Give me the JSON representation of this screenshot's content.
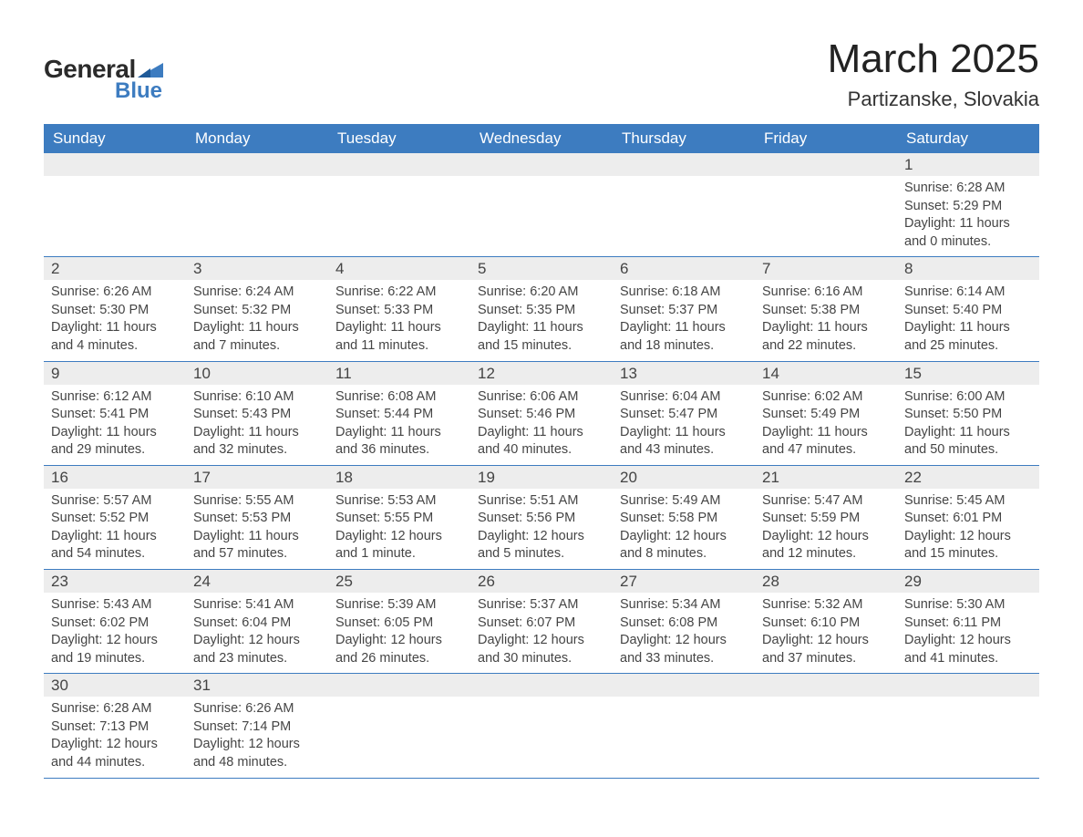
{
  "logo": {
    "text_main": "General",
    "text_sub": "Blue",
    "accent_color": "#3d7cc0",
    "main_color": "#2b2b2b"
  },
  "title": "March 2025",
  "location": "Partizanske, Slovakia",
  "colors": {
    "header_bg": "#3d7cc0",
    "header_text": "#ffffff",
    "daynum_bg": "#ededed",
    "row_border": "#3d7cc0",
    "body_text": "#454545",
    "background": "#ffffff"
  },
  "typography": {
    "title_fontsize": 44,
    "location_fontsize": 22,
    "weekday_fontsize": 17,
    "daynum_fontsize": 17,
    "body_fontsize": 14.5
  },
  "weekdays": [
    "Sunday",
    "Monday",
    "Tuesday",
    "Wednesday",
    "Thursday",
    "Friday",
    "Saturday"
  ],
  "weeks": [
    [
      null,
      null,
      null,
      null,
      null,
      null,
      {
        "day": "1",
        "sunrise": "6:28 AM",
        "sunset": "5:29 PM",
        "daylight": "11 hours and 0 minutes."
      }
    ],
    [
      {
        "day": "2",
        "sunrise": "6:26 AM",
        "sunset": "5:30 PM",
        "daylight": "11 hours and 4 minutes."
      },
      {
        "day": "3",
        "sunrise": "6:24 AM",
        "sunset": "5:32 PM",
        "daylight": "11 hours and 7 minutes."
      },
      {
        "day": "4",
        "sunrise": "6:22 AM",
        "sunset": "5:33 PM",
        "daylight": "11 hours and 11 minutes."
      },
      {
        "day": "5",
        "sunrise": "6:20 AM",
        "sunset": "5:35 PM",
        "daylight": "11 hours and 15 minutes."
      },
      {
        "day": "6",
        "sunrise": "6:18 AM",
        "sunset": "5:37 PM",
        "daylight": "11 hours and 18 minutes."
      },
      {
        "day": "7",
        "sunrise": "6:16 AM",
        "sunset": "5:38 PM",
        "daylight": "11 hours and 22 minutes."
      },
      {
        "day": "8",
        "sunrise": "6:14 AM",
        "sunset": "5:40 PM",
        "daylight": "11 hours and 25 minutes."
      }
    ],
    [
      {
        "day": "9",
        "sunrise": "6:12 AM",
        "sunset": "5:41 PM",
        "daylight": "11 hours and 29 minutes."
      },
      {
        "day": "10",
        "sunrise": "6:10 AM",
        "sunset": "5:43 PM",
        "daylight": "11 hours and 32 minutes."
      },
      {
        "day": "11",
        "sunrise": "6:08 AM",
        "sunset": "5:44 PM",
        "daylight": "11 hours and 36 minutes."
      },
      {
        "day": "12",
        "sunrise": "6:06 AM",
        "sunset": "5:46 PM",
        "daylight": "11 hours and 40 minutes."
      },
      {
        "day": "13",
        "sunrise": "6:04 AM",
        "sunset": "5:47 PM",
        "daylight": "11 hours and 43 minutes."
      },
      {
        "day": "14",
        "sunrise": "6:02 AM",
        "sunset": "5:49 PM",
        "daylight": "11 hours and 47 minutes."
      },
      {
        "day": "15",
        "sunrise": "6:00 AM",
        "sunset": "5:50 PM",
        "daylight": "11 hours and 50 minutes."
      }
    ],
    [
      {
        "day": "16",
        "sunrise": "5:57 AM",
        "sunset": "5:52 PM",
        "daylight": "11 hours and 54 minutes."
      },
      {
        "day": "17",
        "sunrise": "5:55 AM",
        "sunset": "5:53 PM",
        "daylight": "11 hours and 57 minutes."
      },
      {
        "day": "18",
        "sunrise": "5:53 AM",
        "sunset": "5:55 PM",
        "daylight": "12 hours and 1 minute."
      },
      {
        "day": "19",
        "sunrise": "5:51 AM",
        "sunset": "5:56 PM",
        "daylight": "12 hours and 5 minutes."
      },
      {
        "day": "20",
        "sunrise": "5:49 AM",
        "sunset": "5:58 PM",
        "daylight": "12 hours and 8 minutes."
      },
      {
        "day": "21",
        "sunrise": "5:47 AM",
        "sunset": "5:59 PM",
        "daylight": "12 hours and 12 minutes."
      },
      {
        "day": "22",
        "sunrise": "5:45 AM",
        "sunset": "6:01 PM",
        "daylight": "12 hours and 15 minutes."
      }
    ],
    [
      {
        "day": "23",
        "sunrise": "5:43 AM",
        "sunset": "6:02 PM",
        "daylight": "12 hours and 19 minutes."
      },
      {
        "day": "24",
        "sunrise": "5:41 AM",
        "sunset": "6:04 PM",
        "daylight": "12 hours and 23 minutes."
      },
      {
        "day": "25",
        "sunrise": "5:39 AM",
        "sunset": "6:05 PM",
        "daylight": "12 hours and 26 minutes."
      },
      {
        "day": "26",
        "sunrise": "5:37 AM",
        "sunset": "6:07 PM",
        "daylight": "12 hours and 30 minutes."
      },
      {
        "day": "27",
        "sunrise": "5:34 AM",
        "sunset": "6:08 PM",
        "daylight": "12 hours and 33 minutes."
      },
      {
        "day": "28",
        "sunrise": "5:32 AM",
        "sunset": "6:10 PM",
        "daylight": "12 hours and 37 minutes."
      },
      {
        "day": "29",
        "sunrise": "5:30 AM",
        "sunset": "6:11 PM",
        "daylight": "12 hours and 41 minutes."
      }
    ],
    [
      {
        "day": "30",
        "sunrise": "6:28 AM",
        "sunset": "7:13 PM",
        "daylight": "12 hours and 44 minutes."
      },
      {
        "day": "31",
        "sunrise": "6:26 AM",
        "sunset": "7:14 PM",
        "daylight": "12 hours and 48 minutes."
      },
      null,
      null,
      null,
      null,
      null
    ]
  ],
  "labels": {
    "sunrise": "Sunrise:",
    "sunset": "Sunset:",
    "daylight": "Daylight:"
  }
}
